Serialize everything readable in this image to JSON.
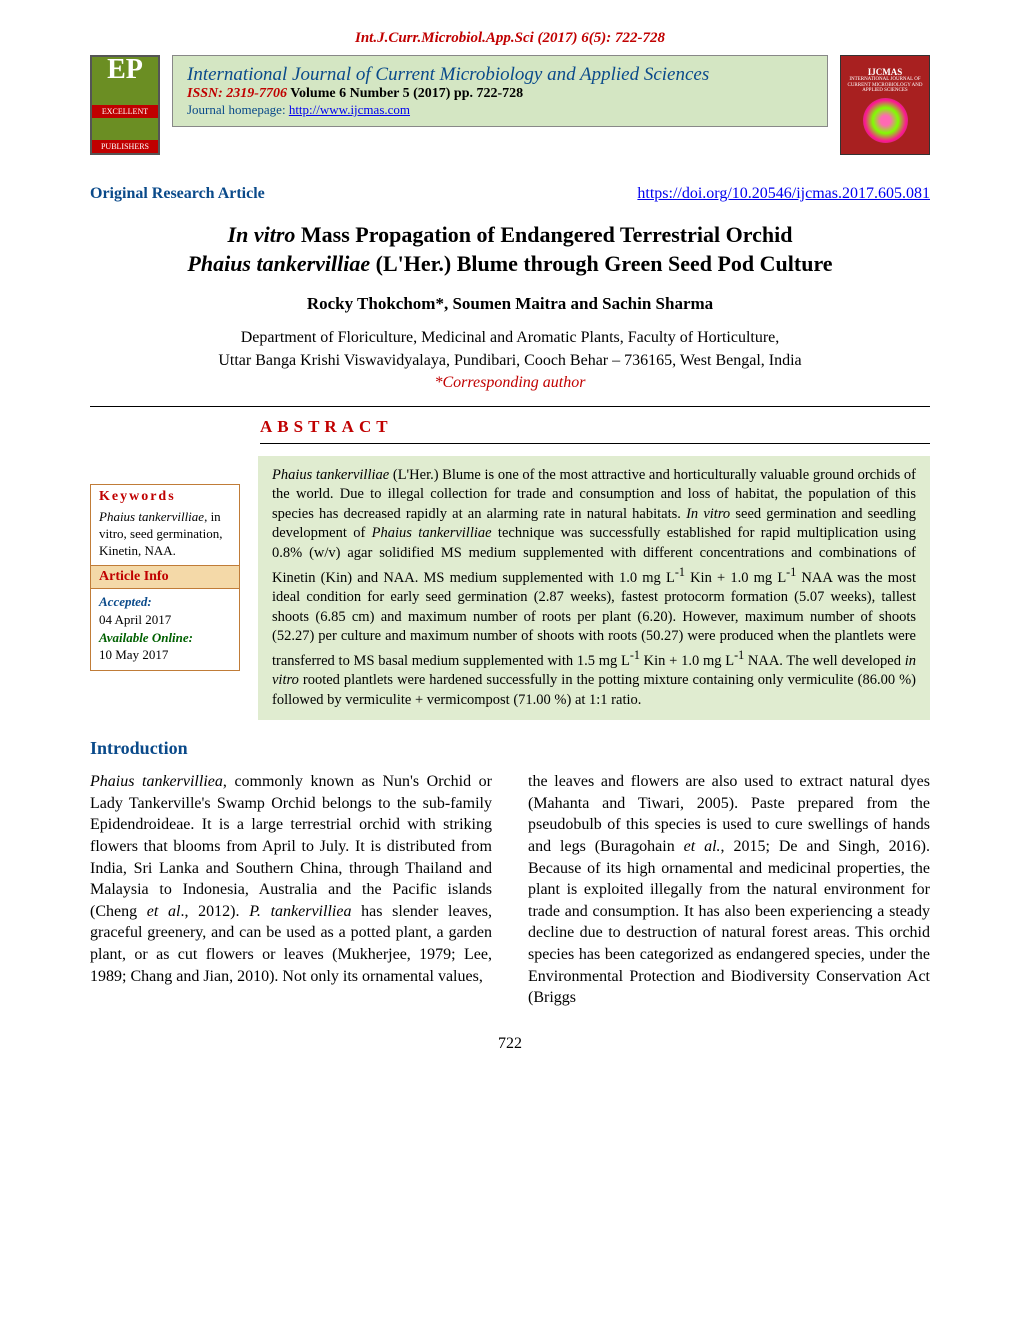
{
  "top_citation": "Int.J.Curr.Microbiol.App.Sci (2017) 6(5): 722-728",
  "publisher_logo": {
    "initials": "EP",
    "line1": "EXCELLENT",
    "line2": "PUBLISHERS"
  },
  "journal": {
    "name": "International Journal of Current Microbiology and Applied Sciences",
    "issn_prefix": "ISSN: 2319-7706",
    "volume_text": " Volume 6 Number 5 (2017) pp. 722-728",
    "homepage_label": "Journal homepage: ",
    "homepage_url": "http://www.ijcmas.com"
  },
  "cover": {
    "abbrev": "IJCMAS",
    "sub": "INTERNATIONAL JOURNAL OF CURRENT MICROBIOLOGY AND APPLIED SCIENCES"
  },
  "article_type": "Original Research Article",
  "doi_url": "https://doi.org/10.20546/ijcmas.2017.605.081",
  "title_l1_pre": "In vitro",
  "title_l1_post": " Mass Propagation of Endangered Terrestrial Orchid",
  "title_l2_pre": "Phaius tankervilliae",
  "title_l2_post": " (L'Her.) Blume through Green Seed Pod Culture",
  "authors": "Rocky Thokchom*, Soumen Maitra and Sachin Sharma",
  "affiliation_l1": "Department of Floriculture, Medicinal and Aromatic Plants, Faculty of Horticulture,",
  "affiliation_l2": "Uttar Banga Krishi Viswavidyalaya, Pundibari, Cooch Behar – 736165, West Bengal, India",
  "corresponding": "*Corresponding author",
  "abstract_heading": "ABSTRACT",
  "keywords": {
    "heading": "Keywords",
    "italic": "Phaius tankervilliae",
    "rest": ", in vitro, seed germination, Kinetin, NAA."
  },
  "article_info": {
    "heading": "Article Info",
    "accepted_label": "Accepted:",
    "accepted_date": "04 April 2017",
    "available_label": "Available Online:",
    "available_date": "10 May 2017"
  },
  "abstract": {
    "s1_it": "Phaius tankervilliae",
    "s1": " (L'Her.) Blume is one of the most attractive and horticulturally valuable ground orchids of the world. Due to illegal collection for trade and consumption and loss of habitat, the population of this species has decreased rapidly at an alarming rate in natural habitats. ",
    "s2_it": "In vitro",
    "s2": " seed germination and seedling development of ",
    "s3_it": "Phaius tankervilliae",
    "s3": " technique was successfully established for rapid multiplication using 0.8% (w/v) agar solidified MS medium supplemented with different concentrations and combinations of Kinetin (Kin) and NAA. MS medium supplemented with 1.0 mg L",
    "sup1": "-1",
    "s4": " Kin + 1.0 mg L",
    "sup2": "-1",
    "s5": " NAA was the most ideal condition for early seed germination (2.87 weeks), fastest protocorm formation (5.07 weeks), tallest shoots (6.85 cm) and maximum number of roots per plant (6.20). However, maximum number of shoots (52.27) per culture and maximum number of shoots with roots (50.27) were produced when the plantlets were transferred to MS basal medium supplemented with 1.5 mg L",
    "sup3": "-1",
    "s6": " Kin + 1.0 mg L",
    "sup4": "-1",
    "s7": " NAA. The well developed ",
    "s8_it": "in vitro",
    "s8": " rooted plantlets were hardened successfully in the potting mixture containing only vermiculite (86.00 %) followed by vermiculite + vermicompost (71.00 %) at 1:1 ratio."
  },
  "intro_heading": "Introduction",
  "col_left": {
    "p1_it1": "Phaius tankervilliea",
    "p1a": ", commonly known as Nun's Orchid or Lady Tankerville's Swamp Orchid belongs to the sub-family Epidendroideae. It is a large terrestrial orchid with striking flowers that blooms from April to July. It is distributed from India, Sri Lanka and Southern China, through Thailand and Malaysia to Indonesia, Australia and the Pacific islands (Cheng ",
    "p1_it2": "et al",
    "p1b": "., 2012). ",
    "p1_it3": "P. tankervilliea",
    "p1c": " has slender leaves, graceful greenery, and can be used as a potted plant, a garden plant, or as cut flowers or leaves (Mukherjee, 1979; Lee, 1989; Chang and Jian, 2010). Not only its ornamental values,"
  },
  "col_right": {
    "p1a": "the leaves and flowers are also used to extract natural dyes (Mahanta and Tiwari, 2005). Paste prepared from the pseudobulb of this species is used to cure swellings of hands and legs (Buragohain ",
    "p1_it1": "et al.",
    "p1b": ", 2015; De and Singh, 2016). Because of its high ornamental and medicinal properties, the plant is exploited illegally from the natural environment for trade and consumption. It has also been experiencing a steady decline due to destruction of natural forest areas. This orchid species has been categorized as endangered species, under the Environmental Protection and Biodiversity Conservation Act (Briggs"
  },
  "page_number": "722"
}
